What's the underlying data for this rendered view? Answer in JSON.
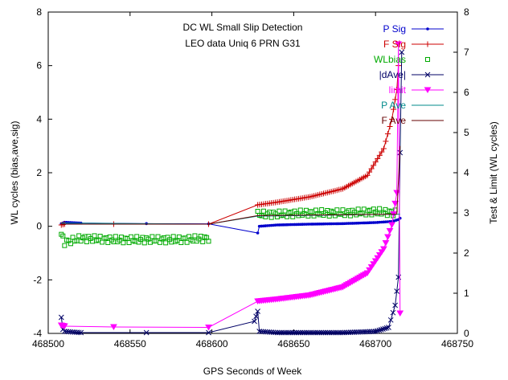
{
  "chart_data": {
    "type": "scatter",
    "title": "DC WL Small Slip Detection",
    "subtitle": "LEO data Uniq 6 PRN G31",
    "xlabel": "GPS Seconds of Week",
    "ylabel": "WL cycles (bias,ave,sig)",
    "y2label": "Test & Limit (WL cycles)",
    "xlim": [
      468500,
      468750
    ],
    "ylim": [
      -4,
      8
    ],
    "y2lim": [
      0,
      8
    ],
    "x_ticks": [
      468500,
      468550,
      468600,
      468650,
      468700,
      468750
    ],
    "y_ticks": [
      -4,
      -2,
      0,
      2,
      4,
      6,
      8
    ],
    "y2_ticks": [
      0,
      1,
      2,
      3,
      4,
      5,
      6,
      7,
      8
    ],
    "grid": false,
    "legend_position": "top-right",
    "series": [
      {
        "name": "P Sig",
        "axis": "y1",
        "color": "#0000cc",
        "style": "line",
        "marker": "dot",
        "points": [
          [
            468508,
            0.1
          ],
          [
            468510,
            0.15
          ],
          [
            468520,
            0.12
          ],
          [
            468560,
            0.1
          ],
          [
            468598,
            0.09
          ],
          [
            468628,
            -0.25
          ],
          [
            468629,
            0.0
          ],
          [
            468640,
            0.05
          ],
          [
            468660,
            0.08
          ],
          [
            468680,
            0.1
          ],
          [
            468700,
            0.14
          ],
          [
            468710,
            0.18
          ],
          [
            468714,
            0.25
          ],
          [
            468715,
            0.3
          ]
        ]
      },
      {
        "name": "F Sig",
        "axis": "y1",
        "color": "#cc0000",
        "style": "line",
        "marker": "plus",
        "points": [
          [
            468508,
            0.05
          ],
          [
            468510,
            0.08
          ],
          [
            468540,
            0.08
          ],
          [
            468598,
            0.08
          ],
          [
            468628,
            0.8
          ],
          [
            468640,
            0.9
          ],
          [
            468660,
            1.1
          ],
          [
            468680,
            1.4
          ],
          [
            468695,
            1.9
          ],
          [
            468705,
            2.9
          ],
          [
            468710,
            4.0
          ],
          [
            468713,
            5.1
          ],
          [
            468714,
            6.0
          ]
        ]
      },
      {
        "name": "WLbias",
        "axis": "y1",
        "color": "#00aa00",
        "style": "points",
        "marker": "square",
        "points": [
          [
            468508,
            -0.3
          ],
          [
            468510,
            -0.6
          ],
          [
            468520,
            -0.45
          ],
          [
            468540,
            -0.5
          ],
          [
            468560,
            -0.5
          ],
          [
            468580,
            -0.5
          ],
          [
            468598,
            -0.45
          ],
          [
            468628,
            0.45
          ],
          [
            468640,
            0.45
          ],
          [
            468660,
            0.5
          ],
          [
            468680,
            0.5
          ],
          [
            468700,
            0.55
          ],
          [
            468712,
            0.5
          ]
        ]
      },
      {
        "name": "|dAve|",
        "axis": "y2",
        "color": "#000066",
        "style": "line",
        "marker": "x",
        "points": [
          [
            468508,
            0.4
          ],
          [
            468509,
            0.1
          ],
          [
            468510,
            0.05
          ],
          [
            468520,
            0.02
          ],
          [
            468560,
            0.02
          ],
          [
            468598,
            0.02
          ],
          [
            468626,
            0.3
          ],
          [
            468628,
            0.55
          ],
          [
            468629,
            0.05
          ],
          [
            468640,
            0.02
          ],
          [
            468660,
            0.02
          ],
          [
            468680,
            0.02
          ],
          [
            468700,
            0.05
          ],
          [
            468708,
            0.15
          ],
          [
            468712,
            0.7
          ],
          [
            468714,
            1.4
          ],
          [
            468715,
            4.5
          ],
          [
            468716,
            7.0
          ]
        ]
      },
      {
        "name": "limit",
        "axis": "y2",
        "color": "#ff00ff",
        "style": "line",
        "marker": "triangle-down",
        "points": [
          [
            468508,
            0.2
          ],
          [
            468510,
            0.18
          ],
          [
            468540,
            0.16
          ],
          [
            468598,
            0.15
          ],
          [
            468628,
            0.8
          ],
          [
            468640,
            0.85
          ],
          [
            468660,
            0.95
          ],
          [
            468680,
            1.15
          ],
          [
            468695,
            1.5
          ],
          [
            468705,
            2.1
          ],
          [
            468710,
            2.7
          ],
          [
            468713,
            3.5
          ],
          [
            468714,
            7.2
          ],
          [
            468715,
            0.5
          ]
        ]
      },
      {
        "name": "P Ave",
        "axis": "y1",
        "color": "#008b8b",
        "style": "line",
        "marker": "none",
        "points": [
          [
            468508,
            0.12
          ],
          [
            468598,
            0.08
          ],
          [
            468628,
            0.38
          ],
          [
            468715,
            0.45
          ]
        ]
      },
      {
        "name": "F Ave",
        "axis": "y1",
        "color": "#660000",
        "style": "line",
        "marker": "none",
        "points": [
          [
            468508,
            0.08
          ],
          [
            468598,
            0.08
          ],
          [
            468628,
            0.4
          ],
          [
            468713,
            0.45
          ],
          [
            468715,
            3.0
          ]
        ]
      }
    ]
  }
}
